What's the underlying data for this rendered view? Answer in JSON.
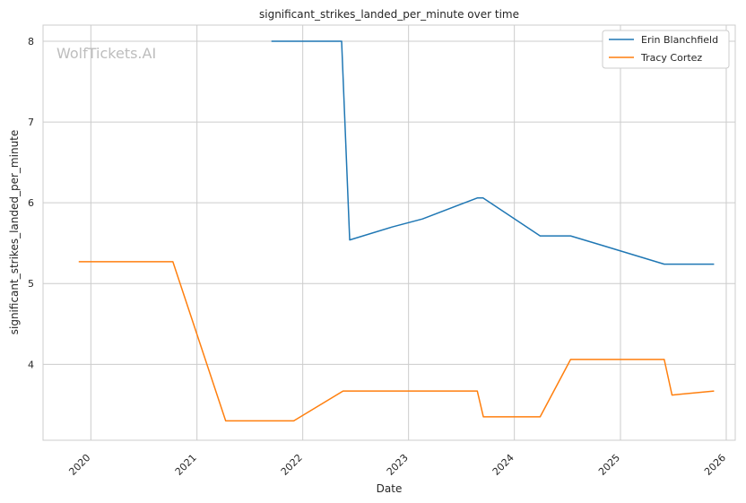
{
  "chart_data": {
    "type": "line",
    "title": "significant_strikes_landed_per_minute over time",
    "xlabel": "Date",
    "ylabel": "significant_strikes_landed_per_minute",
    "watermark": "WolfTickets.AI",
    "xlim": [
      "2019-07-20",
      "2026-02-01"
    ],
    "ylim": [
      3.06,
      8.2
    ],
    "x_ticks": [
      "2020-01-01",
      "2021-01-01",
      "2022-01-01",
      "2023-01-01",
      "2024-01-01",
      "2025-01-01",
      "2026-01-01"
    ],
    "x_tick_labels": [
      "2020",
      "2021",
      "2022",
      "2023",
      "2024",
      "2025",
      "2026"
    ],
    "y_ticks": [
      4,
      5,
      6,
      7,
      8
    ],
    "y_tick_labels": [
      "4",
      "5",
      "6",
      "7",
      "8"
    ],
    "grid": true,
    "legend_position": "top-right",
    "series": [
      {
        "name": "Erin Blanchfield",
        "color": "#1f77b4",
        "points": [
          {
            "x": "2021-09-15",
            "y": 8.0
          },
          {
            "x": "2022-05-15",
            "y": 8.0
          },
          {
            "x": "2022-06-12",
            "y": 5.54
          },
          {
            "x": "2022-11-05",
            "y": 5.7
          },
          {
            "x": "2023-02-18",
            "y": 5.8
          },
          {
            "x": "2023-08-26",
            "y": 6.06
          },
          {
            "x": "2023-09-15",
            "y": 6.06
          },
          {
            "x": "2024-03-30",
            "y": 5.59
          },
          {
            "x": "2024-07-13",
            "y": 5.59
          },
          {
            "x": "2024-11-01",
            "y": 5.47
          },
          {
            "x": "2025-06-01",
            "y": 5.24
          },
          {
            "x": "2025-11-20",
            "y": 5.24
          }
        ]
      },
      {
        "name": "Tracy Cortez",
        "color": "#ff7f0e",
        "points": [
          {
            "x": "2019-11-20",
            "y": 5.27
          },
          {
            "x": "2020-10-10",
            "y": 5.27
          },
          {
            "x": "2021-04-10",
            "y": 3.3
          },
          {
            "x": "2021-12-01",
            "y": 3.3
          },
          {
            "x": "2022-05-20",
            "y": 3.67
          },
          {
            "x": "2023-08-26",
            "y": 3.67
          },
          {
            "x": "2023-09-16",
            "y": 3.35
          },
          {
            "x": "2024-03-30",
            "y": 3.35
          },
          {
            "x": "2024-07-13",
            "y": 4.06
          },
          {
            "x": "2025-06-01",
            "y": 4.06
          },
          {
            "x": "2025-06-28",
            "y": 3.62
          },
          {
            "x": "2025-11-20",
            "y": 3.67
          }
        ]
      }
    ]
  }
}
